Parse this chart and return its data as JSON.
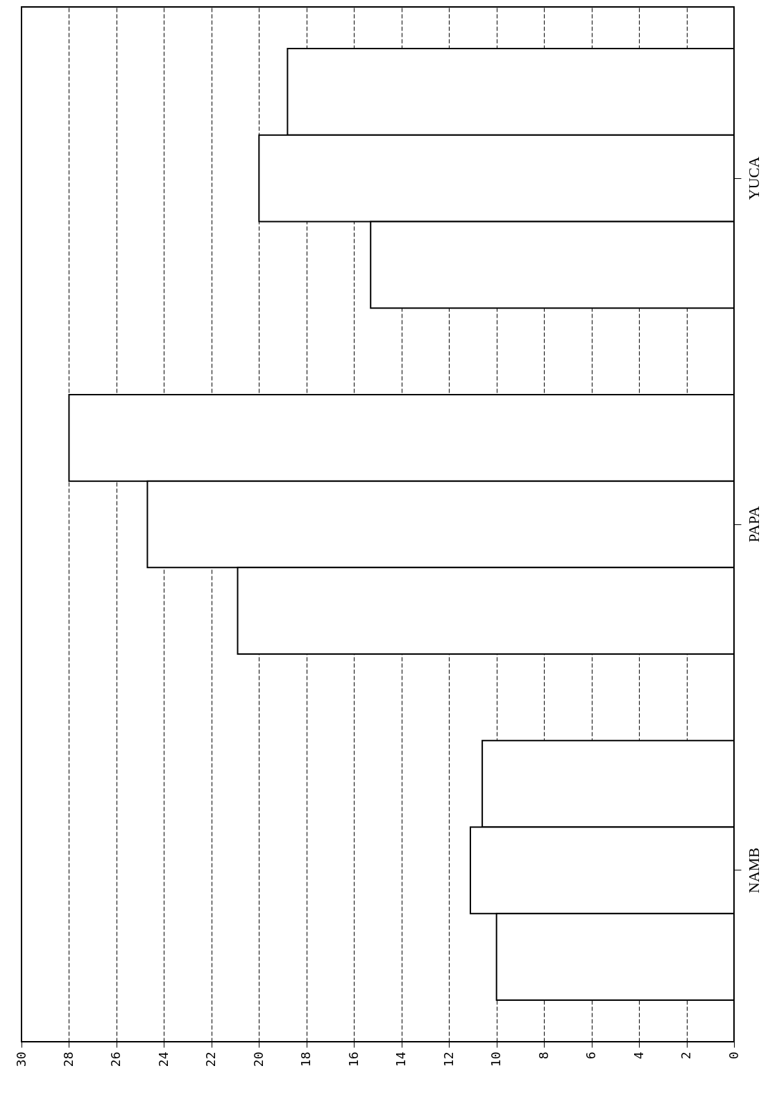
{
  "chart_data": {
    "type": "bar",
    "orientation": "horizontal",
    "categories": [
      "YUCA",
      "PAPA",
      "NAMB"
    ],
    "series": [
      {
        "color": "#ffffff",
        "values": [
          18.8,
          28,
          10.6
        ]
      },
      {
        "color": "#ffffff",
        "values": [
          20,
          24.7,
          11.1
        ]
      },
      {
        "color": "#ffffff",
        "values": [
          15.3,
          20.9,
          10
        ]
      }
    ],
    "xlim": [
      30,
      0
    ],
    "xticks": [
      0,
      2,
      4,
      6,
      8,
      10,
      12,
      14,
      16,
      18,
      20,
      22,
      24,
      26,
      28,
      30
    ],
    "grid": "x",
    "legend": false
  }
}
